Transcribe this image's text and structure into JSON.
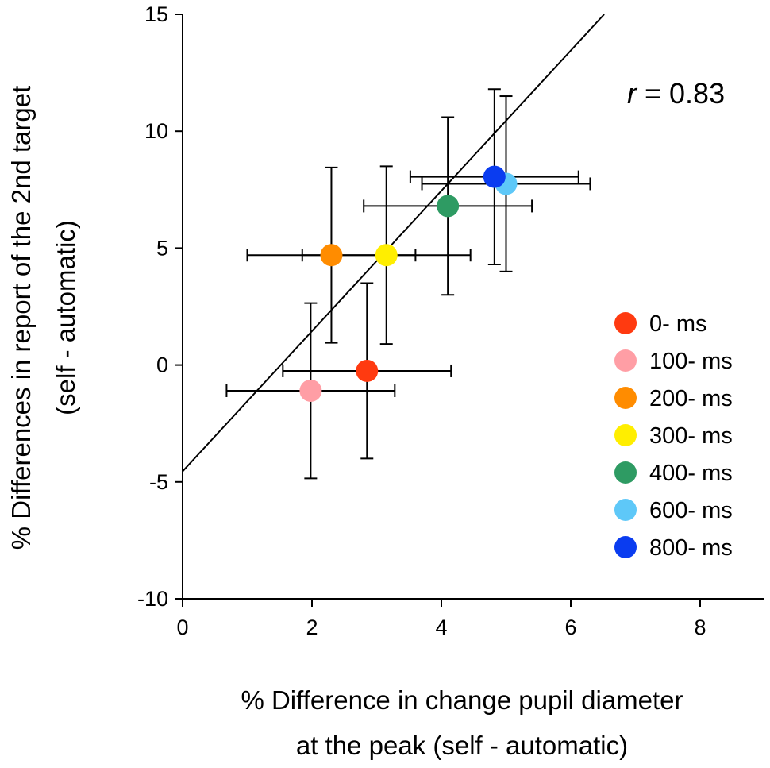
{
  "chart_data": {
    "type": "scatter",
    "title": "",
    "xlabel": [
      "% Difference in change pupil diameter",
      "at the peak (self - automatic)"
    ],
    "ylabel": [
      "% Differences in report of the 2nd target",
      "(self - automatic)"
    ],
    "xlim": [
      0,
      9
    ],
    "ylim": [
      -10,
      15
    ],
    "xticks": [
      "0",
      "2",
      "4",
      "6",
      "8"
    ],
    "xtick_values": [
      0,
      2,
      4,
      6,
      8
    ],
    "yticks": [
      "-10",
      "-5",
      "0",
      "5",
      "10",
      "15"
    ],
    "ytick_values": [
      -10,
      -5,
      0,
      5,
      10,
      15
    ],
    "grid": false,
    "legend_position": "right",
    "annotation": {
      "italic": "r",
      "rest": " = 0.83"
    },
    "fit_line": {
      "intercept": -4.55,
      "slope": 3.0
    },
    "series": [
      {
        "name": "0- ms",
        "color": "#ff3a10",
        "x": 2.85,
        "y": -0.25,
        "xerr": 1.3,
        "yerr": 3.75
      },
      {
        "name": "100- ms",
        "color": "#ff9ea5",
        "x": 1.98,
        "y": -1.1,
        "xerr": 1.3,
        "yerr": 3.75
      },
      {
        "name": "200- ms",
        "color": "#ff8c00",
        "x": 2.3,
        "y": 4.7,
        "xerr": 1.3,
        "yerr": 3.75
      },
      {
        "name": "300- ms",
        "color": "#ffee00",
        "x": 3.15,
        "y": 4.7,
        "xerr": 1.3,
        "yerr": 3.8
      },
      {
        "name": "400- ms",
        "color": "#2e9b63",
        "x": 4.1,
        "y": 6.8,
        "xerr": 1.3,
        "yerr": 3.8
      },
      {
        "name": "600- ms",
        "color": "#5ec8f8",
        "x": 5.0,
        "y": 7.75,
        "xerr": 1.3,
        "yerr": 3.75
      },
      {
        "name": "800- ms",
        "color": "#0a3cf0",
        "x": 4.82,
        "y": 8.05,
        "xerr": 1.3,
        "yerr": 3.75
      }
    ]
  }
}
